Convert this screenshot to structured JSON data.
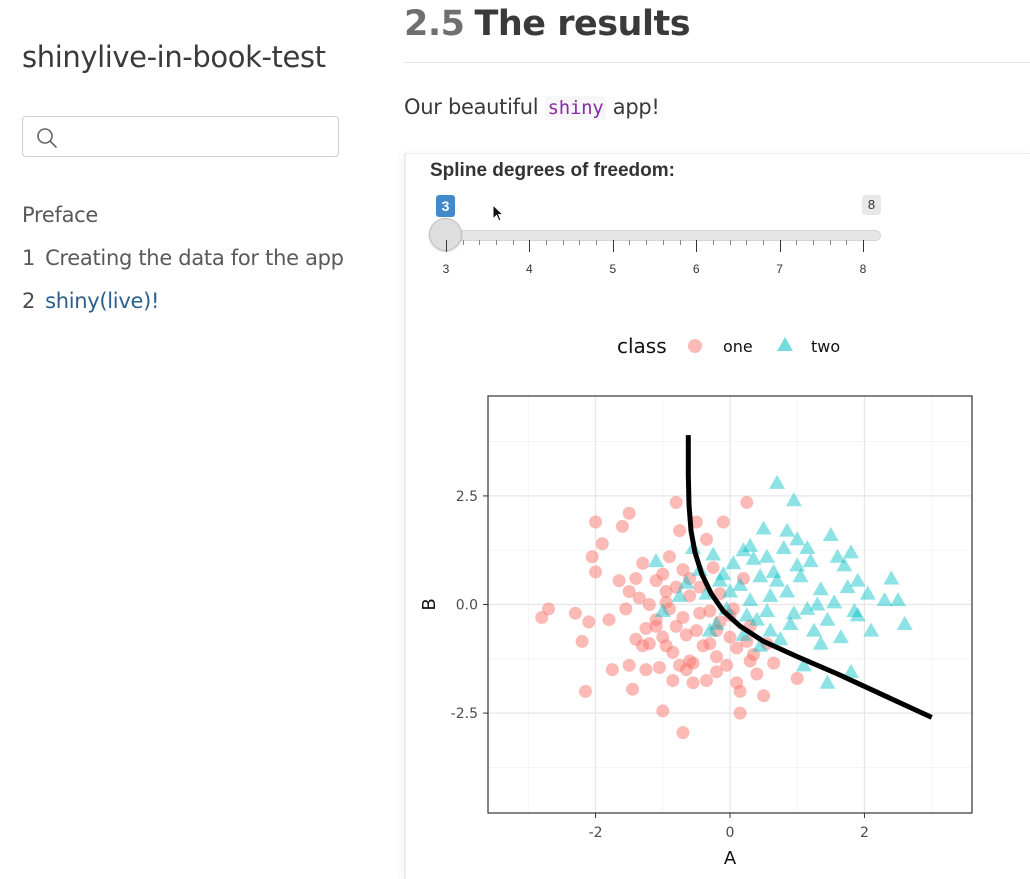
{
  "sidebar": {
    "title": "shinylive-in-book-test",
    "search": {
      "placeholder": ""
    },
    "items": [
      {
        "num": "",
        "label": "Preface"
      },
      {
        "num": "1",
        "label": "Creating the data for the app"
      },
      {
        "num": "2",
        "label": "shiny(live)!"
      }
    ]
  },
  "main": {
    "heading": {
      "number": "2.5",
      "text": "The results"
    },
    "intro": {
      "before": "Our beautiful ",
      "code": "shiny",
      "after": " app!"
    }
  },
  "app": {
    "slider": {
      "label": "Spline degrees of freedom:",
      "min": 3,
      "max": 8,
      "value": 3,
      "min_badge": "3",
      "max_badge": "8",
      "ticks": [
        "3",
        "4",
        "5",
        "6",
        "7",
        "8"
      ]
    }
  },
  "chart_data": {
    "type": "scatter",
    "xlabel": "A",
    "ylabel": "B",
    "xlim": [
      -3.6,
      3.6
    ],
    "ylim": [
      -4.8,
      4.8
    ],
    "xticks": [
      -2,
      0,
      2
    ],
    "xtick_labels": [
      "-2",
      "0",
      "2"
    ],
    "yticks": [
      2.5,
      0,
      -2.5
    ],
    "ytick_labels": [
      "2.5",
      "0.0",
      "-2.5"
    ],
    "grid": true,
    "legend": {
      "title": "class",
      "position": "top",
      "entries": [
        "one",
        "two"
      ]
    },
    "colors": {
      "one": "#f8766d",
      "two": "#00bfc4",
      "line": "#000000"
    },
    "series": [
      {
        "name": "one",
        "marker": "circle",
        "points": [
          [
            -2.8,
            -0.3
          ],
          [
            -2.7,
            -0.1
          ],
          [
            -2.3,
            -0.2
          ],
          [
            -2.2,
            -0.85
          ],
          [
            -2.15,
            -2.0
          ],
          [
            -2.0,
            1.9
          ],
          [
            -2.05,
            1.1
          ],
          [
            -2.0,
            0.75
          ],
          [
            -1.9,
            1.4
          ],
          [
            -1.8,
            -0.35
          ],
          [
            -1.75,
            -1.5
          ],
          [
            -1.6,
            1.8
          ],
          [
            -1.5,
            2.1
          ],
          [
            -1.5,
            0.3
          ],
          [
            -1.45,
            -1.95
          ],
          [
            -1.4,
            0.6
          ],
          [
            -1.4,
            -0.8
          ],
          [
            -1.35,
            0.15
          ],
          [
            -1.3,
            0.95
          ],
          [
            -1.25,
            -0.55
          ],
          [
            -1.25,
            -1.5
          ],
          [
            -1.2,
            0.0
          ],
          [
            -1.2,
            -0.9
          ],
          [
            -1.1,
            0.55
          ],
          [
            -1.1,
            -0.35
          ],
          [
            -1.05,
            -1.45
          ],
          [
            -1.0,
            -2.45
          ],
          [
            -1.0,
            0.7
          ],
          [
            -1.0,
            -0.75
          ],
          [
            -0.95,
            0.05
          ],
          [
            -0.9,
            1.1
          ],
          [
            -0.9,
            -0.1
          ],
          [
            -0.85,
            -1.1
          ],
          [
            -0.85,
            -1.75
          ],
          [
            -0.8,
            2.35
          ],
          [
            -0.8,
            0.4
          ],
          [
            -0.8,
            -0.5
          ],
          [
            -0.75,
            1.7
          ],
          [
            -0.75,
            -1.4
          ],
          [
            -0.7,
            0.8
          ],
          [
            -0.7,
            -0.3
          ],
          [
            -0.7,
            -2.95
          ],
          [
            -0.65,
            -0.7
          ],
          [
            -0.6,
            0.2
          ],
          [
            -0.6,
            -1.3
          ],
          [
            -0.55,
            -1.8
          ],
          [
            -0.5,
            1.9
          ],
          [
            -0.5,
            -0.6
          ],
          [
            -0.45,
            0.4
          ],
          [
            -0.4,
            -0.95
          ],
          [
            -0.35,
            1.5
          ],
          [
            -0.35,
            -1.75
          ],
          [
            -0.3,
            -0.15
          ],
          [
            -0.25,
            0.85
          ],
          [
            -0.2,
            -1.2
          ],
          [
            -0.2,
            -0.6
          ],
          [
            -0.15,
            0.25
          ],
          [
            -0.1,
            1.9
          ],
          [
            -0.05,
            -1.4
          ],
          [
            0.0,
            -0.75
          ],
          [
            0.05,
            -0.1
          ],
          [
            0.1,
            -1.8
          ],
          [
            0.15,
            -2.0
          ],
          [
            0.15,
            -2.5
          ],
          [
            0.2,
            0.6
          ],
          [
            0.25,
            -0.85
          ],
          [
            0.25,
            2.35
          ],
          [
            0.3,
            -0.5
          ],
          [
            0.35,
            -1.15
          ],
          [
            0.4,
            -1.6
          ],
          [
            0.5,
            -2.1
          ],
          [
            0.55,
            -0.9
          ],
          [
            -1.55,
            -0.1
          ],
          [
            -1.1,
            -0.5
          ],
          [
            -0.95,
            -0.95
          ],
          [
            -0.65,
            -1.5
          ],
          [
            -0.6,
            0.6
          ],
          [
            -0.45,
            -0.2
          ],
          [
            -0.3,
            -0.9
          ],
          [
            -0.15,
            -0.4
          ],
          [
            0.1,
            -1.0
          ],
          [
            0.3,
            -1.3
          ],
          [
            1.0,
            -1.7
          ],
          [
            0.65,
            -1.35
          ],
          [
            -1.5,
            -1.4
          ],
          [
            -1.3,
            -0.95
          ],
          [
            -0.95,
            0.3
          ],
          [
            -0.55,
            -1.35
          ],
          [
            -0.2,
            -1.55
          ],
          [
            0.0,
            -0.25
          ],
          [
            -2.1,
            -0.4
          ],
          [
            -1.65,
            0.55
          ]
        ]
      },
      {
        "name": "two",
        "marker": "triangle",
        "points": [
          [
            0.7,
            2.8
          ],
          [
            0.95,
            2.4
          ],
          [
            1.0,
            1.5
          ],
          [
            1.5,
            1.6
          ],
          [
            0.5,
            1.75
          ],
          [
            0.8,
            1.3
          ],
          [
            1.2,
            1.0
          ],
          [
            1.7,
            0.9
          ],
          [
            1.9,
            0.55
          ],
          [
            2.4,
            0.6
          ],
          [
            2.5,
            0.1
          ],
          [
            2.6,
            -0.45
          ],
          [
            2.3,
            0.1
          ],
          [
            1.9,
            -0.25
          ],
          [
            1.8,
            -1.55
          ],
          [
            1.45,
            -1.8
          ],
          [
            1.1,
            -1.4
          ],
          [
            0.75,
            -0.8
          ],
          [
            0.6,
            0.2
          ],
          [
            0.45,
            0.65
          ],
          [
            0.35,
            1.05
          ],
          [
            0.25,
            -0.25
          ],
          [
            0.15,
            0.45
          ],
          [
            0.05,
            0.95
          ],
          [
            -0.05,
            -0.1
          ],
          [
            -0.15,
            0.55
          ],
          [
            -0.25,
            1.15
          ],
          [
            -0.35,
            0.25
          ],
          [
            -0.45,
            0.8
          ],
          [
            -0.55,
            1.3
          ],
          [
            -0.65,
            0.5
          ],
          [
            -0.75,
            0.2
          ],
          [
            -1.1,
            1.0
          ],
          [
            -1.0,
            -0.15
          ],
          [
            -0.2,
            -0.45
          ],
          [
            0.0,
            0.3
          ],
          [
            0.2,
            -0.7
          ],
          [
            0.4,
            -0.35
          ],
          [
            0.55,
            -0.15
          ],
          [
            0.65,
            0.75
          ],
          [
            0.85,
            0.3
          ],
          [
            0.9,
            -0.45
          ],
          [
            1.05,
            0.65
          ],
          [
            1.15,
            -0.1
          ],
          [
            1.25,
            -0.6
          ],
          [
            1.35,
            0.35
          ],
          [
            1.45,
            -0.35
          ],
          [
            1.55,
            0.05
          ],
          [
            1.65,
            -0.75
          ],
          [
            1.75,
            0.4
          ],
          [
            1.85,
            -0.15
          ],
          [
            2.05,
            0.25
          ],
          [
            2.1,
            -0.6
          ],
          [
            0.3,
            1.35
          ],
          [
            0.55,
            1.1
          ],
          [
            0.7,
            0.55
          ],
          [
            0.85,
            1.7
          ],
          [
            1.0,
            0.9
          ],
          [
            1.15,
            1.3
          ],
          [
            1.3,
            0.0
          ],
          [
            1.35,
            -0.9
          ],
          [
            0.6,
            -0.6
          ],
          [
            0.45,
            -0.95
          ],
          [
            0.3,
            0.1
          ],
          [
            -0.1,
            0.7
          ],
          [
            -0.3,
            -0.6
          ],
          [
            0.95,
            -0.2
          ],
          [
            1.6,
            1.1
          ],
          [
            1.8,
            1.2
          ],
          [
            0.2,
            1.25
          ]
        ]
      },
      {
        "name": "",
        "marker": "line",
        "points": [
          [
            -0.62,
            3.9
          ],
          [
            -0.62,
            3.0
          ],
          [
            -0.61,
            2.3
          ],
          [
            -0.58,
            1.7
          ],
          [
            -0.52,
            1.2
          ],
          [
            -0.42,
            0.7
          ],
          [
            -0.28,
            0.25
          ],
          [
            -0.1,
            -0.15
          ],
          [
            0.15,
            -0.5
          ],
          [
            0.5,
            -0.85
          ],
          [
            1.0,
            -1.2
          ],
          [
            1.6,
            -1.6
          ],
          [
            2.3,
            -2.1
          ],
          [
            3.0,
            -2.6
          ]
        ]
      }
    ]
  }
}
